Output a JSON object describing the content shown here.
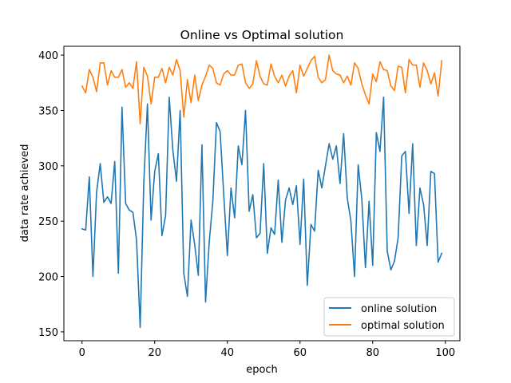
{
  "chart_data": {
    "type": "line",
    "title": "Online vs Optimal solution",
    "xlabel": "epoch",
    "ylabel": "data rate achieved",
    "xlim": [
      -5,
      104
    ],
    "ylim": [
      142,
      408
    ],
    "xticks": [
      0,
      20,
      40,
      60,
      80,
      100
    ],
    "yticks": [
      150,
      200,
      250,
      300,
      350,
      400
    ],
    "legend_position": "lower-right",
    "grid": false,
    "series": [
      {
        "name": "online solution",
        "color": "#1f77b4",
        "values": [
          243,
          242,
          290,
          200,
          276,
          302,
          267,
          272,
          266,
          304,
          203,
          353,
          266,
          260,
          258,
          233,
          154,
          285,
          356,
          251,
          295,
          311,
          237,
          255,
          362,
          314,
          286,
          350,
          203,
          182,
          251,
          229,
          201,
          319,
          177,
          231,
          268,
          339,
          331,
          274,
          219,
          280,
          253,
          318,
          301,
          350,
          259,
          274,
          235,
          239,
          302,
          221,
          244,
          238,
          287,
          231,
          269,
          280,
          265,
          282,
          229,
          288,
          192,
          247,
          241,
          296,
          280,
          300,
          320,
          306,
          318,
          284,
          329,
          271,
          250,
          200,
          301,
          270,
          208,
          268,
          210,
          330,
          313,
          362,
          223,
          206,
          214,
          235,
          309,
          313,
          257,
          320,
          228,
          280,
          265,
          228,
          295,
          293,
          213,
          221
        ]
      },
      {
        "name": "optimal solution",
        "color": "#ff7f0e",
        "values": [
          372,
          366,
          387,
          380,
          367,
          393,
          393,
          373,
          386,
          380,
          380,
          387,
          371,
          375,
          370,
          394,
          338,
          389,
          381,
          356,
          380,
          380,
          388,
          375,
          389,
          382,
          396,
          386,
          344,
          378,
          357,
          382,
          359,
          373,
          381,
          391,
          388,
          375,
          373,
          383,
          386,
          382,
          382,
          391,
          392,
          375,
          370,
          374,
          395,
          381,
          374,
          373,
          392,
          381,
          375,
          382,
          372,
          381,
          386,
          366,
          391,
          381,
          388,
          395,
          399,
          380,
          375,
          378,
          400,
          386,
          383,
          382,
          375,
          381,
          373,
          393,
          388,
          374,
          364,
          356,
          383,
          376,
          394,
          387,
          386,
          372,
          368,
          390,
          389,
          366,
          396,
          391,
          391,
          371,
          393,
          386,
          374,
          384,
          363,
          395
        ]
      }
    ]
  }
}
